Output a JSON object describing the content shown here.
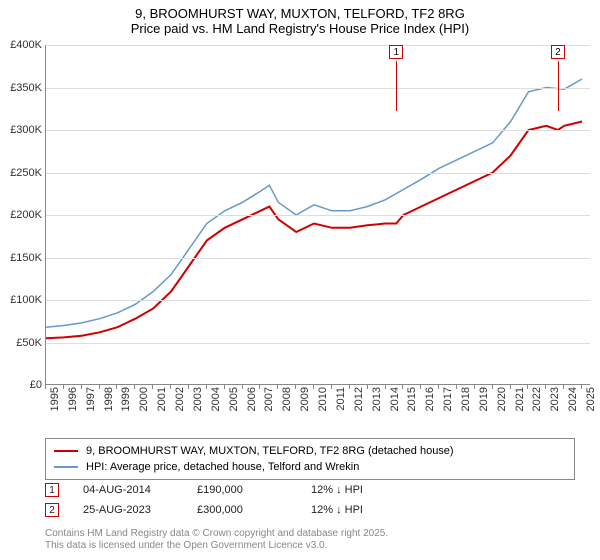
{
  "title_line1": "9, BROOMHURST WAY, MUXTON, TELFORD, TF2 8RG",
  "title_line2": "Price paid vs. HM Land Registry's House Price Index (HPI)",
  "chart": {
    "type": "line",
    "background_color": "#ffffff",
    "grid_color": "#dddddd",
    "axis_color": "#888888",
    "label_fontsize": 11,
    "xlim": [
      1995,
      2025.5
    ],
    "ylim": [
      0,
      400000
    ],
    "ytick_step": 50000,
    "yticks": [
      {
        "v": 0,
        "label": "£0"
      },
      {
        "v": 50000,
        "label": "£50K"
      },
      {
        "v": 100000,
        "label": "£100K"
      },
      {
        "v": 150000,
        "label": "£150K"
      },
      {
        "v": 200000,
        "label": "£200K"
      },
      {
        "v": 250000,
        "label": "£250K"
      },
      {
        "v": 300000,
        "label": "£300K"
      },
      {
        "v": 350000,
        "label": "£350K"
      },
      {
        "v": 400000,
        "label": "£400K"
      }
    ],
    "xticks": [
      1995,
      1996,
      1997,
      1998,
      1999,
      2000,
      2001,
      2002,
      2003,
      2004,
      2005,
      2006,
      2007,
      2008,
      2009,
      2010,
      2011,
      2012,
      2013,
      2014,
      2015,
      2016,
      2017,
      2018,
      2019,
      2020,
      2021,
      2022,
      2023,
      2024,
      2025
    ],
    "series": [
      {
        "name": "price_paid",
        "label": "9, BROOMHURST WAY, MUXTON, TELFORD, TF2 8RG (detached house)",
        "color": "#d00000",
        "line_width": 2,
        "points": [
          [
            1995,
            55000
          ],
          [
            1996,
            56000
          ],
          [
            1997,
            58000
          ],
          [
            1998,
            62000
          ],
          [
            1999,
            68000
          ],
          [
            2000,
            78000
          ],
          [
            2001,
            90000
          ],
          [
            2002,
            110000
          ],
          [
            2003,
            140000
          ],
          [
            2004,
            170000
          ],
          [
            2005,
            185000
          ],
          [
            2006,
            195000
          ],
          [
            2007,
            205000
          ],
          [
            2007.5,
            210000
          ],
          [
            2008,
            195000
          ],
          [
            2009,
            180000
          ],
          [
            2010,
            190000
          ],
          [
            2011,
            185000
          ],
          [
            2012,
            185000
          ],
          [
            2013,
            188000
          ],
          [
            2014,
            190000
          ],
          [
            2014.6,
            190000
          ],
          [
            2015,
            200000
          ],
          [
            2016,
            210000
          ],
          [
            2017,
            220000
          ],
          [
            2018,
            230000
          ],
          [
            2019,
            240000
          ],
          [
            2020,
            250000
          ],
          [
            2021,
            270000
          ],
          [
            2022,
            300000
          ],
          [
            2023,
            305000
          ],
          [
            2023.65,
            300000
          ],
          [
            2024,
            305000
          ],
          [
            2025,
            310000
          ]
        ]
      },
      {
        "name": "hpi",
        "label": "HPI: Average price, detached house, Telford and Wrekin",
        "color": "#6699cc",
        "line_width": 1.5,
        "points": [
          [
            1995,
            68000
          ],
          [
            1996,
            70000
          ],
          [
            1997,
            73000
          ],
          [
            1998,
            78000
          ],
          [
            1999,
            85000
          ],
          [
            2000,
            95000
          ],
          [
            2001,
            110000
          ],
          [
            2002,
            130000
          ],
          [
            2003,
            160000
          ],
          [
            2004,
            190000
          ],
          [
            2005,
            205000
          ],
          [
            2006,
            215000
          ],
          [
            2007,
            228000
          ],
          [
            2007.5,
            235000
          ],
          [
            2008,
            215000
          ],
          [
            2009,
            200000
          ],
          [
            2010,
            212000
          ],
          [
            2011,
            205000
          ],
          [
            2012,
            205000
          ],
          [
            2013,
            210000
          ],
          [
            2014,
            218000
          ],
          [
            2015,
            230000
          ],
          [
            2016,
            242000
          ],
          [
            2017,
            255000
          ],
          [
            2018,
            265000
          ],
          [
            2019,
            275000
          ],
          [
            2020,
            285000
          ],
          [
            2021,
            310000
          ],
          [
            2022,
            345000
          ],
          [
            2023,
            350000
          ],
          [
            2024,
            348000
          ],
          [
            2025,
            360000
          ]
        ]
      }
    ],
    "markers": [
      {
        "n": "1",
        "x": 2014.6,
        "y_top": 400000
      },
      {
        "n": "2",
        "x": 2023.65,
        "y_top": 400000
      }
    ]
  },
  "legend": {
    "items": [
      {
        "color": "#d00000",
        "width": 2,
        "text": "9, BROOMHURST WAY, MUXTON, TELFORD, TF2 8RG (detached house)"
      },
      {
        "color": "#6699cc",
        "width": 1.5,
        "text": "HPI: Average price, detached house, Telford and Wrekin"
      }
    ]
  },
  "sales": [
    {
      "n": "1",
      "date": "04-AUG-2014",
      "price": "£190,000",
      "diff": "12% ↓ HPI"
    },
    {
      "n": "2",
      "date": "25-AUG-2023",
      "price": "£300,000",
      "diff": "12% ↓ HPI"
    }
  ],
  "footer_line1": "Contains HM Land Registry data © Crown copyright and database right 2025.",
  "footer_line2": "This data is licensed under the Open Government Licence v3.0."
}
